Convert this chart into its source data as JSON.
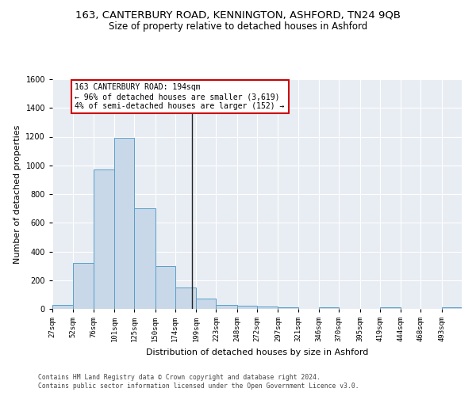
{
  "title": "163, CANTERBURY ROAD, KENNINGTON, ASHFORD, TN24 9QB",
  "subtitle": "Size of property relative to detached houses in Ashford",
  "xlabel": "Distribution of detached houses by size in Ashford",
  "ylabel": "Number of detached properties",
  "bin_edges": [
    27,
    52,
    76,
    101,
    125,
    150,
    174,
    199,
    223,
    248,
    272,
    297,
    321,
    346,
    370,
    395,
    419,
    444,
    468,
    493,
    517
  ],
  "bar_heights": [
    30,
    320,
    970,
    1190,
    700,
    300,
    150,
    70,
    25,
    20,
    15,
    10,
    0,
    10,
    0,
    0,
    10,
    0,
    0,
    10
  ],
  "bar_facecolor": "#c8d8e8",
  "bar_edgecolor": "#5a9fc8",
  "property_size": 194,
  "vline_color": "#222222",
  "annotation_line1": "163 CANTERBURY ROAD: 194sqm",
  "annotation_line2": "← 96% of detached houses are smaller (3,619)",
  "annotation_line3": "4% of semi-detached houses are larger (152) →",
  "annotation_box_edgecolor": "#cc0000",
  "annotation_box_facecolor": "#ffffff",
  "ylim": [
    0,
    1600
  ],
  "background_color": "#e8edf4",
  "grid_color": "#ffffff",
  "footer_line1": "Contains HM Land Registry data © Crown copyright and database right 2024.",
  "footer_line2": "Contains public sector information licensed under the Open Government Licence v3.0.",
  "title_fontsize": 9.5,
  "subtitle_fontsize": 8.5,
  "xlabel_fontsize": 8,
  "ylabel_fontsize": 8,
  "tick_fontsize": 6.5,
  "annotation_fontsize": 7,
  "footer_fontsize": 5.8
}
